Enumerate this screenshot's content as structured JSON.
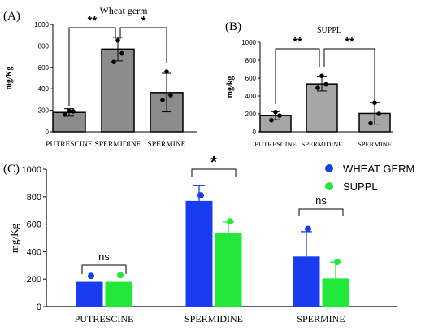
{
  "chart_data": [
    {
      "panel": "(A)",
      "type": "bar",
      "title": "Wheat germ",
      "ylabel": "mg/Kg",
      "ylim": [
        0,
        1000
      ],
      "yticks": [
        "0",
        "200",
        "400",
        "600",
        "800",
        "1000"
      ],
      "categories": [
        "PUTRESCINE",
        "SPERMIDINE",
        "SPERMINE"
      ],
      "values": [
        180,
        770,
        365
      ],
      "errors": [
        35,
        110,
        180
      ],
      "points": [
        [
          160,
          190,
          195
        ],
        [
          650,
          730,
          850
        ],
        [
          295,
          340,
          560
        ]
      ],
      "bar_color": "#8c8c8c",
      "significance": [
        {
          "from": 0,
          "to": 1,
          "label": "**"
        },
        {
          "from": 1,
          "to": 2,
          "label": "*"
        }
      ]
    },
    {
      "panel": "(B)",
      "type": "bar",
      "title": "SUPPL",
      "ylabel": "mg/kg",
      "ylim": [
        0,
        1000
      ],
      "yticks": [
        "0",
        "200",
        "400",
        "600",
        "800",
        "1000"
      ],
      "categories": [
        "PUTRESCINE",
        "SPERMIDINE",
        "SPERMINE"
      ],
      "values": [
        180,
        535,
        205
      ],
      "errors": [
        45,
        80,
        120
      ],
      "points": [
        [
          130,
          180,
          220
        ],
        [
          490,
          530,
          625
        ],
        [
          95,
          200,
          325
        ]
      ],
      "bar_color": "#a6a6a6",
      "significance": [
        {
          "from": 0,
          "to": 1,
          "label": "**"
        },
        {
          "from": 1,
          "to": 2,
          "label": "**"
        }
      ]
    },
    {
      "panel": "(C)",
      "type": "bar",
      "ylabel": "mg/Kg",
      "ylim": [
        0,
        1000
      ],
      "yticks": [
        "0",
        "200",
        "400",
        "600",
        "800",
        "1000"
      ],
      "categories": [
        "PUTRESCINE",
        "SPERMIDINE",
        "SPERMINE"
      ],
      "legend": "top-right",
      "series": [
        {
          "name": "WHEAT GERM",
          "color": "#1a3cf0",
          "values": [
            180,
            770,
            365
          ],
          "errors": [
            0,
            110,
            180
          ],
          "points": [
            [
              200
            ],
            [
              810
            ],
            [
              565
            ]
          ]
        },
        {
          "name": "SUPPL",
          "color": "#22e83a",
          "values": [
            180,
            535,
            205
          ],
          "errors": [
            0,
            80,
            120
          ],
          "points": [
            [
              205
            ],
            [
              620
            ],
            [
              325
            ]
          ]
        }
      ],
      "significance": [
        {
          "category": 0,
          "label": "ns"
        },
        {
          "category": 1,
          "label": "*"
        },
        {
          "category": 2,
          "label": "ns"
        }
      ]
    }
  ]
}
